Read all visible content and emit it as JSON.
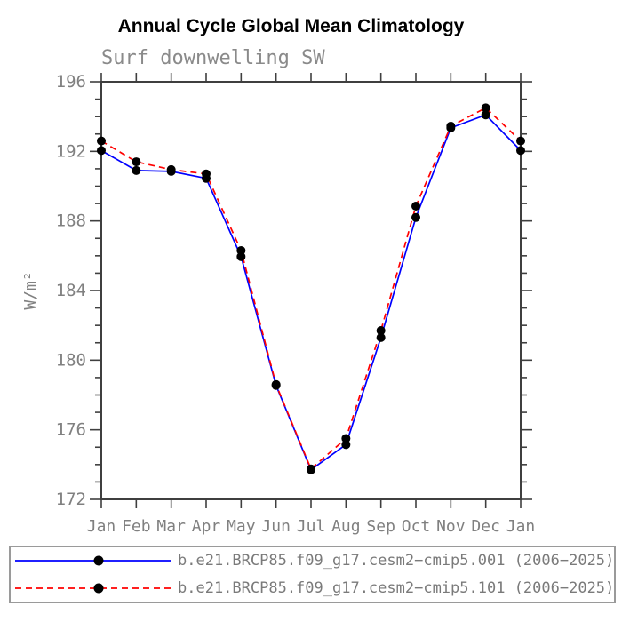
{
  "page": {
    "background": "#ffffff"
  },
  "chart_data": {
    "type": "line",
    "title": "Annual Cycle Global Mean Climatology",
    "subtitle": "Surf downwelling SW",
    "ylabel": "W/m²",
    "xlabel": "",
    "ylim": [
      172,
      196
    ],
    "y_major_step": 4,
    "y_minor_step": 1,
    "grid": false,
    "legend_position": "bottom",
    "categories": [
      "Jan",
      "Feb",
      "Mar",
      "Apr",
      "May",
      "Jun",
      "Jul",
      "Aug",
      "Sep",
      "Oct",
      "Nov",
      "Dec",
      "Jan"
    ],
    "series": [
      {
        "name": "b.e21.BRCP85.f09_g17.cesm2−cmip5.001 (2006−2025)",
        "color": "#0000ff",
        "style": "solid",
        "marker": "circle",
        "values": [
          192.05,
          190.9,
          190.85,
          190.45,
          185.95,
          178.55,
          173.7,
          175.15,
          181.3,
          188.2,
          193.35,
          194.1,
          192.05
        ]
      },
      {
        "name": "b.e21.BRCP85.f09_g17.cesm2−cmip5.101 (2006−2025)",
        "color": "#ff0000",
        "style": "dashed",
        "marker": "circle",
        "values": [
          192.6,
          191.4,
          190.95,
          190.7,
          186.3,
          178.6,
          173.75,
          175.5,
          181.7,
          188.85,
          193.45,
          194.5,
          192.6
        ]
      }
    ]
  },
  "colors": {
    "axis": "#3f3f3f",
    "tick_label": "#808080",
    "marker": "#000000",
    "title": "#000000",
    "subtitle": "#8a8a8a",
    "legend_text": "#7a7a7a",
    "legend_border": "#9a9a9a"
  }
}
